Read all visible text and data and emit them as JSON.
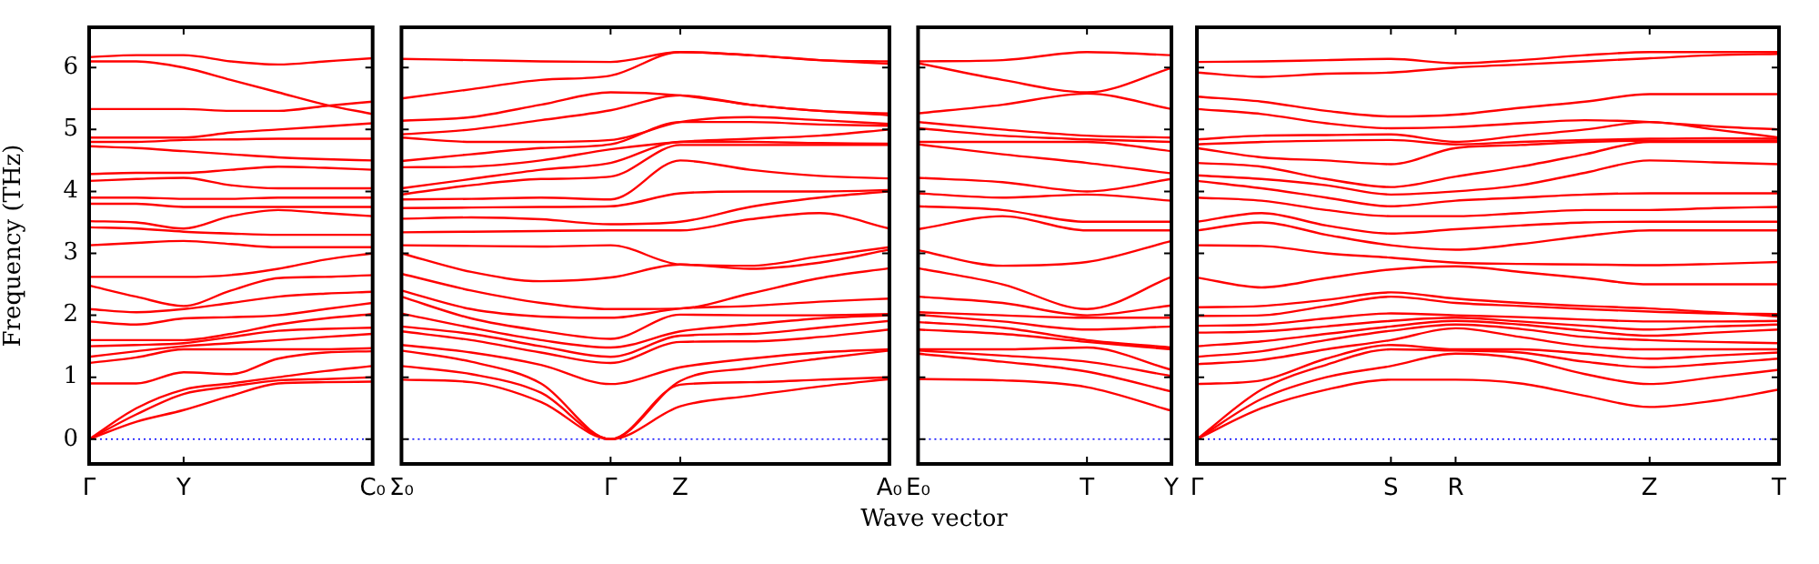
{
  "chart_data": [
    {
      "type": "line",
      "ylabel": "Frequency (THz)",
      "color": "#ff0000",
      "categories": [
        "Γ",
        null,
        "Y",
        null,
        null,
        null,
        "C₀"
      ],
      "ylim": [
        -0.4,
        6.65
      ],
      "yticks": [
        0,
        1,
        2,
        3,
        4,
        5,
        6
      ],
      "ref_lines": [
        {
          "axis": "y",
          "value": 0,
          "color": "#0000ff",
          "line_style": "dotted"
        }
      ],
      "series": [
        {
          "values": [
            0,
            0.28,
            0.47,
            0.7,
            0.9,
            0.92,
            0.93
          ]
        },
        {
          "values": [
            0,
            0.4,
            0.73,
            0.85,
            0.95,
            0.97,
            1.0
          ]
        },
        {
          "values": [
            0,
            0.5,
            0.8,
            0.9,
            1.0,
            1.1,
            1.18
          ]
        },
        {
          "values": [
            0.9,
            0.9,
            1.08,
            1.05,
            1.3,
            1.4,
            1.42
          ]
        },
        {
          "values": [
            1.23,
            1.32,
            1.45,
            1.45,
            1.45,
            1.45,
            1.47
          ]
        },
        {
          "values": [
            1.33,
            1.42,
            1.5,
            1.55,
            1.6,
            1.65,
            1.7
          ]
        },
        {
          "values": [
            1.5,
            1.52,
            1.55,
            1.65,
            1.75,
            1.78,
            1.8
          ]
        },
        {
          "values": [
            1.6,
            1.6,
            1.6,
            1.7,
            1.85,
            1.95,
            2.02
          ]
        },
        {
          "values": [
            1.9,
            1.85,
            1.95,
            1.97,
            2.0,
            2.1,
            2.2
          ]
        },
        {
          "values": [
            2.1,
            2.05,
            2.1,
            2.2,
            2.3,
            2.35,
            2.38
          ]
        },
        {
          "values": [
            2.48,
            2.3,
            2.15,
            2.4,
            2.6,
            2.62,
            2.65
          ]
        },
        {
          "values": [
            2.62,
            2.62,
            2.62,
            2.65,
            2.75,
            2.9,
            3.0
          ]
        },
        {
          "values": [
            3.13,
            3.17,
            3.2,
            3.15,
            3.1,
            3.1,
            3.1
          ]
        },
        {
          "values": [
            3.42,
            3.4,
            3.35,
            3.32,
            3.3,
            3.3,
            3.3
          ]
        },
        {
          "values": [
            3.52,
            3.5,
            3.4,
            3.6,
            3.7,
            3.65,
            3.6
          ]
        },
        {
          "values": [
            3.8,
            3.8,
            3.75,
            3.75,
            3.75,
            3.75,
            3.75
          ]
        },
        {
          "values": [
            3.9,
            3.9,
            3.88,
            3.88,
            3.9,
            3.9,
            3.9
          ]
        },
        {
          "values": [
            4.17,
            4.2,
            4.22,
            4.1,
            4.05,
            4.05,
            4.05
          ]
        },
        {
          "values": [
            4.28,
            4.3,
            4.3,
            4.35,
            4.4,
            4.38,
            4.35
          ]
        },
        {
          "values": [
            4.73,
            4.7,
            4.65,
            4.6,
            4.55,
            4.52,
            4.5
          ]
        },
        {
          "values": [
            4.8,
            4.8,
            4.83,
            4.84,
            4.85,
            4.85,
            4.85
          ]
        },
        {
          "values": [
            4.87,
            4.87,
            4.87,
            4.95,
            5.0,
            5.05,
            5.1
          ]
        },
        {
          "values": [
            5.33,
            5.33,
            5.33,
            5.3,
            5.3,
            5.38,
            5.45
          ]
        },
        {
          "values": [
            6.1,
            6.1,
            6.0,
            5.8,
            5.6,
            5.4,
            5.25
          ]
        },
        {
          "values": [
            6.17,
            6.2,
            6.2,
            6.1,
            6.05,
            6.1,
            6.15
          ]
        }
      ]
    },
    {
      "type": "line",
      "xlabel": "Wave vector",
      "color": "#ff0000",
      "categories": [
        "Σ₀",
        null,
        null,
        "Γ",
        "Z",
        null,
        null,
        "A₀"
      ],
      "ylim": [
        -0.4,
        6.65
      ],
      "yticks": [
        0,
        1,
        2,
        3,
        4,
        5,
        6
      ],
      "tick_labels": "x",
      "ref_lines": [
        {
          "axis": "y",
          "value": 0,
          "color": "#0000ff",
          "line_style": "dotted"
        }
      ],
      "series": [
        {
          "values": [
            0.96,
            0.92,
            0.6,
            0,
            0.53,
            0.7,
            0.85,
            0.97
          ]
        },
        {
          "values": [
            1.18,
            1.05,
            0.75,
            0,
            0.88,
            0.92,
            0.96,
            1.0
          ]
        },
        {
          "values": [
            1.43,
            1.25,
            0.9,
            0,
            0.94,
            1.15,
            1.3,
            1.43
          ]
        },
        {
          "values": [
            1.52,
            1.4,
            1.2,
            0.89,
            1.16,
            1.3,
            1.4,
            1.45
          ]
        },
        {
          "values": [
            1.74,
            1.6,
            1.4,
            1.23,
            1.57,
            1.58,
            1.65,
            1.77
          ]
        },
        {
          "values": [
            1.82,
            1.7,
            1.5,
            1.33,
            1.67,
            1.7,
            1.8,
            1.91
          ]
        },
        {
          "values": [
            2.03,
            1.8,
            1.6,
            1.48,
            1.74,
            1.85,
            1.95,
            2.0
          ]
        },
        {
          "values": [
            2.3,
            1.95,
            1.75,
            1.62,
            2.01,
            2.0,
            2.0,
            2.02
          ]
        },
        {
          "values": [
            2.4,
            2.1,
            1.98,
            1.96,
            2.11,
            2.15,
            2.22,
            2.27
          ]
        },
        {
          "values": [
            2.67,
            2.4,
            2.2,
            2.1,
            2.11,
            2.35,
            2.6,
            2.76
          ]
        },
        {
          "values": [
            3.0,
            2.7,
            2.55,
            2.61,
            2.82,
            2.75,
            2.85,
            3.06
          ]
        },
        {
          "values": [
            3.13,
            3.12,
            3.11,
            3.13,
            2.82,
            2.8,
            2.95,
            3.1
          ]
        },
        {
          "values": [
            3.34,
            3.35,
            3.36,
            3.37,
            3.37,
            3.55,
            3.65,
            3.4
          ]
        },
        {
          "values": [
            3.56,
            3.58,
            3.55,
            3.47,
            3.51,
            3.75,
            3.9,
            4.0
          ]
        },
        {
          "values": [
            3.73,
            3.74,
            3.75,
            3.76,
            3.97,
            4.0,
            4.0,
            4.02
          ]
        },
        {
          "values": [
            3.87,
            3.88,
            3.9,
            3.87,
            4.5,
            4.35,
            4.25,
            4.21
          ]
        },
        {
          "values": [
            3.95,
            4.1,
            4.2,
            4.24,
            4.75,
            4.75,
            4.75,
            4.75
          ]
        },
        {
          "values": [
            4.05,
            4.2,
            4.35,
            4.46,
            4.8,
            4.8,
            4.78,
            4.77
          ]
        },
        {
          "values": [
            4.39,
            4.4,
            4.5,
            4.68,
            4.8,
            4.85,
            4.9,
            5.0
          ]
        },
        {
          "values": [
            4.49,
            4.6,
            4.7,
            4.76,
            5.12,
            5.12,
            5.08,
            5.06
          ]
        },
        {
          "values": [
            4.87,
            4.8,
            4.8,
            4.83,
            5.12,
            5.2,
            5.15,
            5.09
          ]
        },
        {
          "values": [
            4.92,
            5.0,
            5.15,
            5.31,
            5.55,
            5.4,
            5.3,
            5.26
          ]
        },
        {
          "values": [
            5.14,
            5.2,
            5.4,
            5.6,
            5.55,
            5.4,
            5.3,
            5.23
          ]
        },
        {
          "values": [
            5.5,
            5.65,
            5.8,
            5.87,
            6.25,
            6.2,
            6.12,
            6.06
          ]
        },
        {
          "values": [
            6.14,
            6.12,
            6.1,
            6.09,
            6.25,
            6.2,
            6.12,
            6.1
          ]
        }
      ]
    },
    {
      "type": "line",
      "color": "#ff0000",
      "categories": [
        "E₀",
        null,
        "T",
        "Y"
      ],
      "ylim": [
        -0.4,
        6.65
      ],
      "yticks": [
        0,
        1,
        2,
        3,
        4,
        5,
        6
      ],
      "tick_labels": "x",
      "ref_lines": [
        {
          "axis": "y",
          "value": 0,
          "color": "#0000ff",
          "line_style": "dotted"
        }
      ],
      "series": [
        {
          "values": [
            0.97,
            0.95,
            0.84,
            0.46
          ]
        },
        {
          "values": [
            1.38,
            1.25,
            1.09,
            0.77
          ]
        },
        {
          "values": [
            1.43,
            1.35,
            1.25,
            1.02
          ]
        },
        {
          "values": [
            1.45,
            1.45,
            1.48,
            1.12
          ]
        },
        {
          "values": [
            1.77,
            1.7,
            1.57,
            1.45
          ]
        },
        {
          "values": [
            1.89,
            1.8,
            1.6,
            1.48
          ]
        },
        {
          "values": [
            2.01,
            1.9,
            1.77,
            1.82
          ]
        },
        {
          "values": [
            2.05,
            2.0,
            1.96,
            1.96
          ]
        },
        {
          "values": [
            2.3,
            2.2,
            2.0,
            2.16
          ]
        },
        {
          "values": [
            2.76,
            2.5,
            2.1,
            2.62
          ]
        },
        {
          "values": [
            3.05,
            2.8,
            2.86,
            3.2
          ]
        },
        {
          "values": [
            3.39,
            3.6,
            3.37,
            3.37
          ]
        },
        {
          "values": [
            3.76,
            3.7,
            3.51,
            3.51
          ]
        },
        {
          "values": [
            3.97,
            3.9,
            3.95,
            3.85
          ]
        },
        {
          "values": [
            4.22,
            4.15,
            4.0,
            4.2
          ]
        },
        {
          "values": [
            4.76,
            4.6,
            4.46,
            4.29
          ]
        },
        {
          "values": [
            4.8,
            4.8,
            4.8,
            4.65
          ]
        },
        {
          "values": [
            5.02,
            4.9,
            4.84,
            4.8
          ]
        },
        {
          "values": [
            5.12,
            5.0,
            4.9,
            4.87
          ]
        },
        {
          "values": [
            5.26,
            5.4,
            5.58,
            5.33
          ]
        },
        {
          "values": [
            6.07,
            5.8,
            5.6,
            5.99
          ]
        },
        {
          "values": [
            6.1,
            6.12,
            6.25,
            6.2
          ]
        }
      ]
    },
    {
      "type": "line",
      "color": "#ff0000",
      "categories": [
        "Γ",
        null,
        null,
        "S",
        "R",
        null,
        null,
        "Z",
        null,
        "T"
      ],
      "ylim": [
        -0.4,
        6.65
      ],
      "yticks": [
        0,
        1,
        2,
        3,
        4,
        5,
        6
      ],
      "tick_labels": "x",
      "ref_lines": [
        {
          "axis": "y",
          "value": 0,
          "color": "#0000ff",
          "line_style": "dotted"
        }
      ],
      "series": [
        {
          "values": [
            0,
            0.5,
            0.8,
            0.96,
            0.96,
            0.9,
            0.7,
            0.52,
            0.62,
            0.8
          ]
        },
        {
          "values": [
            0,
            0.65,
            1.0,
            1.18,
            1.38,
            1.3,
            1.05,
            0.89,
            1.0,
            1.12
          ]
        },
        {
          "values": [
            0,
            0.8,
            1.2,
            1.45,
            1.43,
            1.4,
            1.25,
            1.16,
            1.22,
            1.3
          ]
        },
        {
          "values": [
            0.89,
            0.95,
            1.3,
            1.52,
            1.45,
            1.45,
            1.38,
            1.3,
            1.35,
            1.4
          ]
        },
        {
          "values": [
            1.21,
            1.28,
            1.45,
            1.6,
            1.79,
            1.65,
            1.5,
            1.45,
            1.45,
            1.45
          ]
        },
        {
          "values": [
            1.33,
            1.42,
            1.6,
            1.75,
            1.85,
            1.78,
            1.65,
            1.6,
            1.57,
            1.55
          ]
        },
        {
          "values": [
            1.5,
            1.58,
            1.7,
            1.82,
            1.91,
            1.85,
            1.75,
            1.67,
            1.72,
            1.77
          ]
        },
        {
          "values": [
            1.72,
            1.74,
            1.82,
            1.91,
            1.96,
            1.9,
            1.83,
            1.77,
            1.82,
            1.85
          ]
        },
        {
          "values": [
            1.83,
            1.85,
            1.95,
            2.03,
            2.0,
            1.97,
            1.93,
            1.9,
            1.9,
            1.91
          ]
        },
        {
          "values": [
            1.99,
            2.0,
            2.15,
            2.3,
            2.2,
            2.15,
            2.1,
            2.06,
            2.03,
            2.02
          ]
        },
        {
          "values": [
            2.13,
            2.15,
            2.25,
            2.37,
            2.27,
            2.2,
            2.15,
            2.11,
            2.05,
            1.98
          ]
        },
        {
          "values": [
            2.61,
            2.45,
            2.6,
            2.74,
            2.79,
            2.7,
            2.6,
            2.5,
            2.5,
            2.5
          ]
        },
        {
          "values": [
            3.13,
            3.12,
            3.0,
            2.93,
            2.85,
            2.83,
            2.82,
            2.81,
            2.83,
            2.86
          ]
        },
        {
          "values": [
            3.37,
            3.5,
            3.3,
            3.13,
            3.06,
            3.15,
            3.28,
            3.37,
            3.37,
            3.37
          ]
        },
        {
          "values": [
            3.51,
            3.65,
            3.45,
            3.32,
            3.39,
            3.45,
            3.5,
            3.51,
            3.51,
            3.51
          ]
        },
        {
          "values": [
            3.9,
            3.85,
            3.7,
            3.6,
            3.6,
            3.65,
            3.7,
            3.7,
            3.73,
            3.75
          ]
        },
        {
          "values": [
            4.17,
            4.05,
            3.9,
            3.76,
            3.85,
            3.9,
            3.95,
            3.97,
            3.97,
            3.97
          ]
        },
        {
          "values": [
            4.26,
            4.2,
            4.1,
            3.95,
            4.0,
            4.1,
            4.3,
            4.5,
            4.47,
            4.44
          ]
        },
        {
          "values": [
            4.46,
            4.4,
            4.2,
            4.07,
            4.24,
            4.4,
            4.6,
            4.8,
            4.8,
            4.8
          ]
        },
        {
          "values": [
            4.7,
            4.55,
            4.5,
            4.44,
            4.7,
            4.75,
            4.8,
            4.82,
            4.82,
            4.82
          ]
        },
        {
          "values": [
            4.76,
            4.8,
            4.82,
            4.83,
            4.76,
            4.8,
            4.83,
            4.85,
            4.86,
            4.85
          ]
        },
        {
          "values": [
            4.84,
            4.9,
            4.91,
            4.92,
            4.8,
            4.9,
            5.0,
            5.12,
            5.0,
            4.87
          ]
        },
        {
          "values": [
            5.33,
            5.25,
            5.1,
            5.02,
            5.04,
            5.1,
            5.15,
            5.12,
            5.05,
            5.0
          ]
        },
        {
          "values": [
            5.53,
            5.45,
            5.3,
            5.21,
            5.24,
            5.35,
            5.45,
            5.57,
            5.57,
            5.57
          ]
        },
        {
          "values": [
            5.92,
            5.85,
            5.9,
            5.92,
            6.0,
            6.05,
            6.1,
            6.15,
            6.2,
            6.22
          ]
        },
        {
          "values": [
            6.09,
            6.1,
            6.12,
            6.14,
            6.07,
            6.12,
            6.2,
            6.25,
            6.25,
            6.25
          ]
        }
      ]
    }
  ]
}
